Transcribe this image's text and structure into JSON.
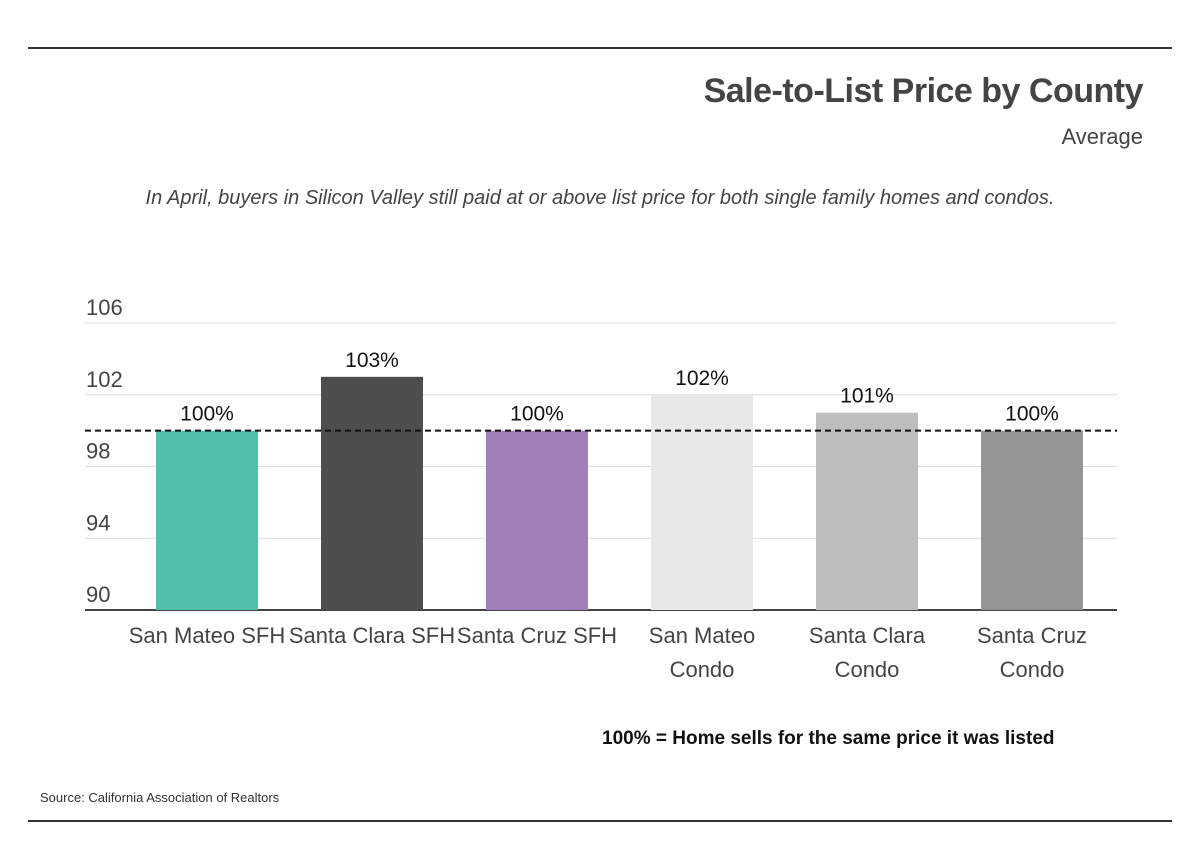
{
  "header": {
    "title": "Sale-to-List Price by County",
    "subtitle": "Average",
    "caption": "In April, buyers in Silicon Valley still paid at or above list price for both single family homes and condos."
  },
  "footer": {
    "note": "100% = Home sells for the same price it was listed",
    "source": "Source:  California Association of Realtors"
  },
  "chart_data": {
    "type": "bar",
    "categories": [
      [
        "San Mateo SFH"
      ],
      [
        "Santa Clara SFH"
      ],
      [
        "Santa Cruz SFH"
      ],
      [
        "San Mateo",
        "Condo"
      ],
      [
        "Santa Clara",
        "Condo"
      ],
      [
        "Santa Cruz",
        "Condo"
      ]
    ],
    "values": [
      100,
      103,
      100,
      102,
      101,
      100
    ],
    "data_labels": [
      "100%",
      "103%",
      "100%",
      "102%",
      "101%",
      "100%"
    ],
    "colors": [
      "#52bfaa",
      "#4d4d4d",
      "#a07fba",
      "#e8e8e8",
      "#bdbdbd",
      "#959595"
    ],
    "yticks": [
      90,
      94,
      98,
      102,
      106
    ],
    "ylim": [
      90,
      106
    ],
    "reference_line": 100,
    "grid": true,
    "xlabel": "",
    "ylabel": ""
  }
}
